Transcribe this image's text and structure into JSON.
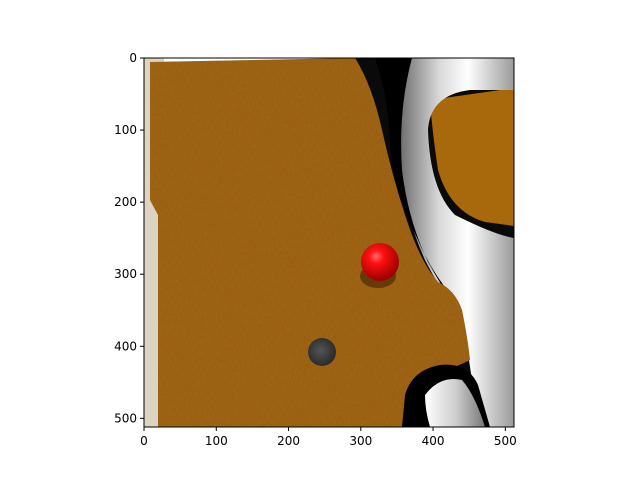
{
  "axes": {
    "x_ticks": [
      0,
      100,
      200,
      300,
      400,
      500
    ],
    "y_ticks": [
      0,
      100,
      200,
      300,
      400,
      500
    ],
    "xlim": [
      0,
      512
    ],
    "ylim_inverted": [
      512,
      0
    ]
  },
  "image": {
    "scene": "board",
    "colors": {
      "wood": "#9a5a0c",
      "wood_dark": "#7a4308",
      "wood_light": "#b8760f",
      "red_ball": "#e60000",
      "dark_hole": "#3a3a3a",
      "black": "#050505",
      "white_metal": "#f0f0f0",
      "gray_metal": "#8c8c8c",
      "beige": "#ddd3c2"
    }
  }
}
